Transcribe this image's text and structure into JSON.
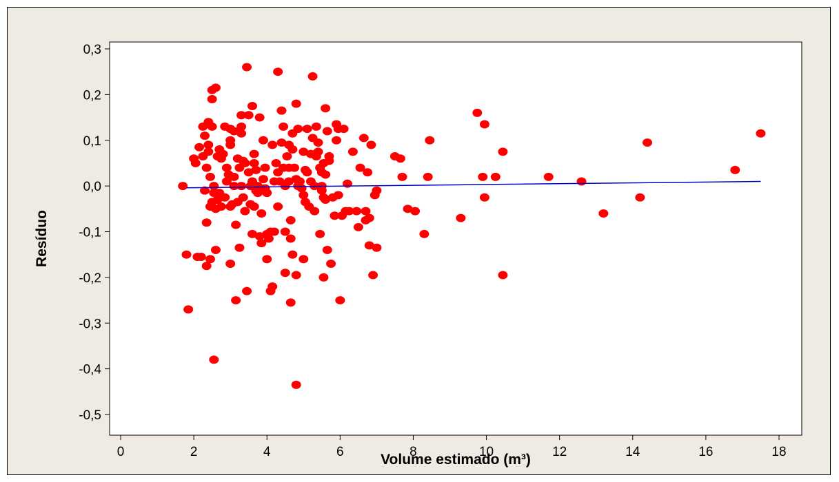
{
  "chart_data": {
    "type": "scatter",
    "xlabel": "Volume estimado (m³)",
    "ylabel": "Resíduo",
    "xlim": [
      0,
      18
    ],
    "ylim": [
      -0.5,
      0.3
    ],
    "x_ticks": [
      0,
      2,
      4,
      6,
      8,
      10,
      12,
      14,
      16,
      18
    ],
    "x_tick_labels": [
      "0",
      "2",
      "4",
      "6",
      "8",
      "10",
      "12",
      "14",
      "16",
      "18"
    ],
    "y_ticks": [
      0.3,
      0.2,
      0.1,
      0.0,
      -0.1,
      -0.2,
      -0.3,
      -0.4,
      -0.5
    ],
    "y_tick_labels": [
      "0,3",
      "0,2",
      "0,1",
      "0,0",
      "-0,1",
      "-0,2",
      "-0,3",
      "-0,4",
      "-0,5"
    ],
    "grid": false,
    "colors": {
      "points": "#ff0000",
      "trend": "#0000cc",
      "frame_bg": "#efebe2",
      "plot_bg": "#ffffff"
    },
    "trend_line": {
      "x": [
        1.8,
        17.5
      ],
      "y": [
        -0.004,
        0.01
      ]
    },
    "points": [
      [
        1.7,
        0.0
      ],
      [
        1.8,
        -0.15
      ],
      [
        1.85,
        -0.27
      ],
      [
        2.0,
        0.06
      ],
      [
        2.05,
        0.05
      ],
      [
        2.1,
        -0.155
      ],
      [
        2.15,
        0.085
      ],
      [
        2.2,
        -0.155
      ],
      [
        2.25,
        0.13
      ],
      [
        2.25,
        0.065
      ],
      [
        2.3,
        -0.01
      ],
      [
        2.3,
        0.11
      ],
      [
        2.35,
        -0.175
      ],
      [
        2.35,
        -0.08
      ],
      [
        2.35,
        0.04
      ],
      [
        2.4,
        0.14
      ],
      [
        2.4,
        0.09
      ],
      [
        2.4,
        0.075
      ],
      [
        2.45,
        -0.045
      ],
      [
        2.45,
        -0.16
      ],
      [
        2.45,
        0.02
      ],
      [
        2.5,
        0.21
      ],
      [
        2.5,
        0.19
      ],
      [
        2.5,
        0.13
      ],
      [
        2.5,
        -0.035
      ],
      [
        2.55,
        0.0
      ],
      [
        2.55,
        -0.015
      ],
      [
        2.55,
        -0.38
      ],
      [
        2.6,
        0.215
      ],
      [
        2.6,
        -0.14
      ],
      [
        2.6,
        -0.05
      ],
      [
        2.65,
        0.065
      ],
      [
        2.65,
        -0.03
      ],
      [
        2.7,
        0.08
      ],
      [
        2.7,
        -0.015
      ],
      [
        2.75,
        0.06
      ],
      [
        2.75,
        -0.045
      ],
      [
        2.8,
        0.07
      ],
      [
        2.85,
        -0.025
      ],
      [
        2.85,
        0.13
      ],
      [
        2.9,
        0.01
      ],
      [
        2.9,
        0.04
      ],
      [
        2.95,
        0.025
      ],
      [
        3.0,
        0.125
      ],
      [
        3.0,
        0.1
      ],
      [
        3.0,
        0.09
      ],
      [
        3.0,
        -0.045
      ],
      [
        3.0,
        -0.17
      ],
      [
        3.05,
        -0.04
      ],
      [
        3.1,
        0.0
      ],
      [
        3.1,
        0.02
      ],
      [
        3.1,
        0.12
      ],
      [
        3.15,
        -0.085
      ],
      [
        3.15,
        -0.25
      ],
      [
        3.2,
        0.06
      ],
      [
        3.2,
        -0.035
      ],
      [
        3.25,
        -0.135
      ],
      [
        3.25,
        0.04
      ],
      [
        3.3,
        0.0
      ],
      [
        3.3,
        0.115
      ],
      [
        3.3,
        0.155
      ],
      [
        3.3,
        0.13
      ],
      [
        3.35,
        -0.025
      ],
      [
        3.35,
        0.055
      ],
      [
        3.4,
        0.05
      ],
      [
        3.4,
        -0.055
      ],
      [
        3.45,
        0.26
      ],
      [
        3.45,
        -0.23
      ],
      [
        3.5,
        0.155
      ],
      [
        3.5,
        0.03
      ],
      [
        3.55,
        -0.04
      ],
      [
        3.55,
        0.0
      ],
      [
        3.6,
        0.175
      ],
      [
        3.6,
        0.01
      ],
      [
        3.6,
        -0.105
      ],
      [
        3.65,
        0.05
      ],
      [
        3.65,
        0.07
      ],
      [
        3.65,
        -0.045
      ],
      [
        3.7,
        -0.01
      ],
      [
        3.7,
        0.035
      ],
      [
        3.75,
        0.0
      ],
      [
        3.75,
        -0.015
      ],
      [
        3.8,
        0.15
      ],
      [
        3.8,
        -0.11
      ],
      [
        3.85,
        -0.125
      ],
      [
        3.85,
        -0.06
      ],
      [
        3.9,
        0.1
      ],
      [
        3.9,
        0.015
      ],
      [
        3.95,
        0.04
      ],
      [
        3.95,
        -0.005
      ],
      [
        4.0,
        -0.015
      ],
      [
        4.0,
        -0.105
      ],
      [
        4.0,
        -0.16
      ],
      [
        4.05,
        -0.115
      ],
      [
        4.1,
        -0.1
      ],
      [
        4.1,
        -0.23
      ],
      [
        4.15,
        0.09
      ],
      [
        4.15,
        -0.22
      ],
      [
        4.2,
        0.01
      ],
      [
        4.2,
        -0.1
      ],
      [
        4.25,
        0.05
      ],
      [
        4.3,
        0.25
      ],
      [
        4.3,
        0.03
      ],
      [
        4.3,
        -0.045
      ],
      [
        4.35,
        0.01
      ],
      [
        4.4,
        0.165
      ],
      [
        4.4,
        0.095
      ],
      [
        4.45,
        0.13
      ],
      [
        4.45,
        0.04
      ],
      [
        4.5,
        0.0
      ],
      [
        4.5,
        -0.1
      ],
      [
        4.5,
        -0.19
      ],
      [
        4.55,
        0.065
      ],
      [
        4.6,
        0.09
      ],
      [
        4.6,
        0.04
      ],
      [
        4.6,
        0.01
      ],
      [
        4.65,
        -0.115
      ],
      [
        4.65,
        -0.075
      ],
      [
        4.65,
        -0.255
      ],
      [
        4.7,
        0.115
      ],
      [
        4.7,
        0.08
      ],
      [
        4.7,
        -0.15
      ],
      [
        4.75,
        0.04
      ],
      [
        4.8,
        0.18
      ],
      [
        4.8,
        0.015
      ],
      [
        4.8,
        -0.195
      ],
      [
        4.8,
        -0.435
      ],
      [
        4.85,
        0.125
      ],
      [
        4.85,
        0.0
      ],
      [
        4.9,
        0.01
      ],
      [
        4.95,
        -0.005
      ],
      [
        5.0,
        0.075
      ],
      [
        5.0,
        -0.02
      ],
      [
        5.0,
        -0.16
      ],
      [
        5.05,
        0.035
      ],
      [
        5.05,
        -0.035
      ],
      [
        5.1,
        0.125
      ],
      [
        5.1,
        0.03
      ],
      [
        5.15,
        -0.045
      ],
      [
        5.2,
        0.07
      ],
      [
        5.2,
        0.01
      ],
      [
        5.25,
        0.24
      ],
      [
        5.25,
        0.105
      ],
      [
        5.3,
        0.0
      ],
      [
        5.3,
        -0.055
      ],
      [
        5.35,
        0.065
      ],
      [
        5.35,
        0.13
      ],
      [
        5.4,
        0.095
      ],
      [
        5.4,
        0.075
      ],
      [
        5.45,
        0.04
      ],
      [
        5.45,
        -0.105
      ],
      [
        5.5,
        0.03
      ],
      [
        5.5,
        0.0
      ],
      [
        5.5,
        -0.01
      ],
      [
        5.55,
        0.05
      ],
      [
        5.55,
        -0.025
      ],
      [
        5.55,
        -0.2
      ],
      [
        5.6,
        0.17
      ],
      [
        5.6,
        0.025
      ],
      [
        5.6,
        -0.03
      ],
      [
        5.65,
        0.12
      ],
      [
        5.65,
        -0.14
      ],
      [
        5.7,
        0.065
      ],
      [
        5.7,
        0.055
      ],
      [
        5.75,
        -0.17
      ],
      [
        5.8,
        -0.025
      ],
      [
        5.85,
        -0.065
      ],
      [
        5.9,
        0.135
      ],
      [
        5.9,
        0.1
      ],
      [
        5.95,
        0.125
      ],
      [
        5.95,
        -0.02
      ],
      [
        6.0,
        -0.25
      ],
      [
        6.05,
        -0.065
      ],
      [
        6.1,
        0.125
      ],
      [
        6.15,
        -0.055
      ],
      [
        6.2,
        0.005
      ],
      [
        6.25,
        -0.055
      ],
      [
        6.35,
        0.075
      ],
      [
        6.45,
        -0.055
      ],
      [
        6.5,
        -0.09
      ],
      [
        6.55,
        0.04
      ],
      [
        6.65,
        0.105
      ],
      [
        6.7,
        -0.055
      ],
      [
        6.7,
        -0.075
      ],
      [
        6.75,
        0.03
      ],
      [
        6.8,
        -0.13
      ],
      [
        6.8,
        -0.07
      ],
      [
        6.85,
        0.09
      ],
      [
        6.9,
        -0.195
      ],
      [
        6.95,
        -0.02
      ],
      [
        7.0,
        -0.135
      ],
      [
        7.0,
        -0.01
      ],
      [
        7.5,
        0.065
      ],
      [
        7.65,
        0.06
      ],
      [
        7.7,
        0.02
      ],
      [
        7.85,
        -0.05
      ],
      [
        8.05,
        -0.055
      ],
      [
        8.3,
        -0.105
      ],
      [
        8.4,
        0.02
      ],
      [
        8.45,
        0.1
      ],
      [
        9.3,
        -0.07
      ],
      [
        9.75,
        0.16
      ],
      [
        9.9,
        0.02
      ],
      [
        9.95,
        -0.025
      ],
      [
        9.95,
        0.135
      ],
      [
        10.25,
        0.02
      ],
      [
        10.45,
        0.075
      ],
      [
        10.45,
        -0.195
      ],
      [
        11.7,
        0.02
      ],
      [
        12.6,
        0.01
      ],
      [
        13.2,
        -0.06
      ],
      [
        14.2,
        -0.025
      ],
      [
        14.4,
        0.095
      ],
      [
        16.8,
        0.035
      ],
      [
        17.5,
        0.115
      ]
    ]
  }
}
